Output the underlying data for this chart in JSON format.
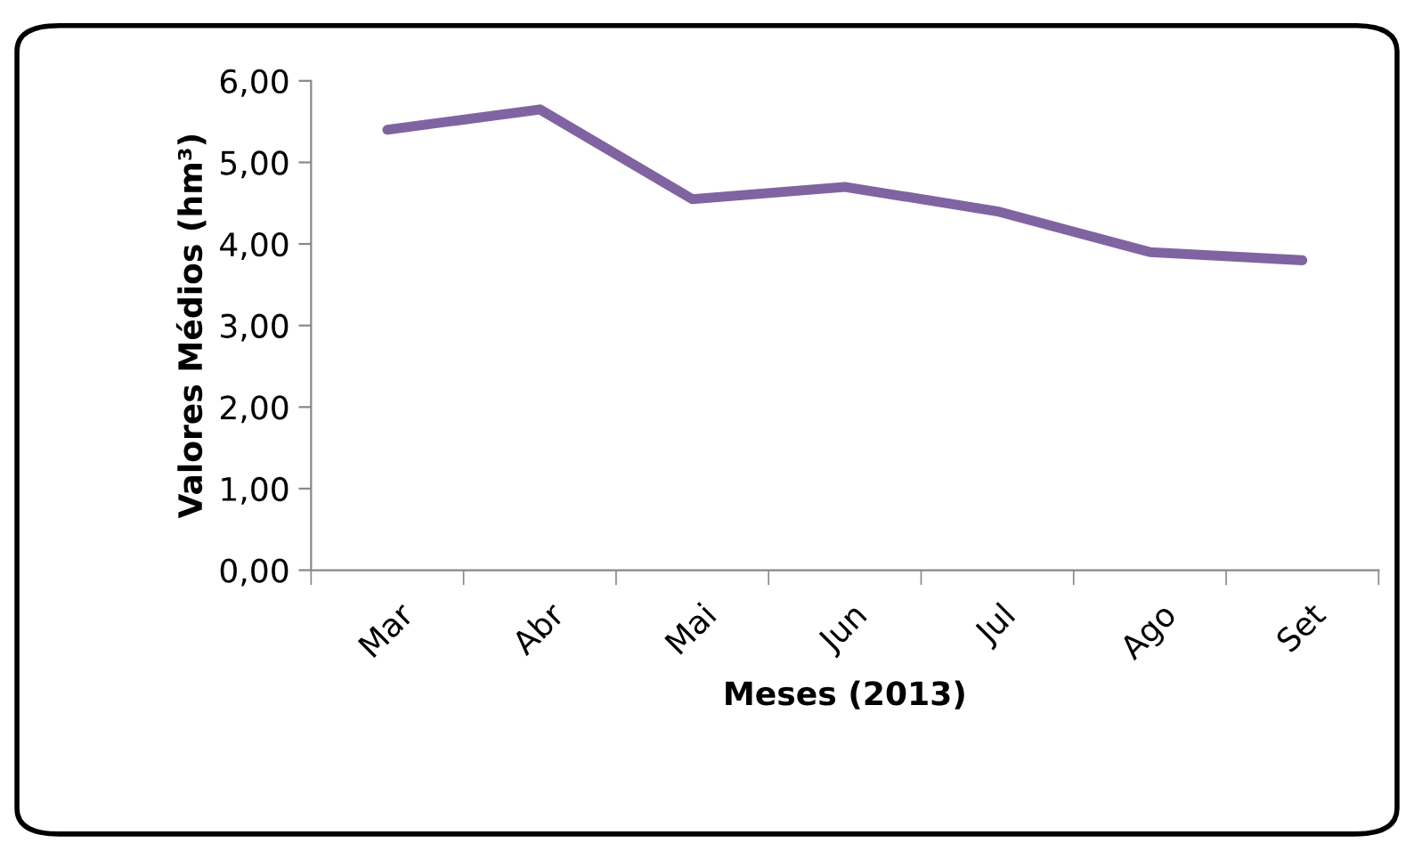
{
  "chart_data": {
    "type": "line",
    "xlabel": "Meses (2013)",
    "ylabel": "Valores Médios (hm³)",
    "categories": [
      "Mar",
      "Abr",
      "Mai",
      "Jun",
      "Jul",
      "Ago",
      "Set"
    ],
    "series": [
      {
        "color": "#8064a2",
        "values": [
          5.4,
          5.65,
          4.55,
          4.7,
          4.4,
          3.9,
          3.8
        ]
      }
    ],
    "ylim": [
      0,
      6
    ],
    "yticks": [
      {
        "value": 0,
        "label": "0,00"
      },
      {
        "value": 1,
        "label": "1,00"
      },
      {
        "value": 2,
        "label": "2,00"
      },
      {
        "value": 3,
        "label": "3,00"
      },
      {
        "value": 4,
        "label": "4,00"
      },
      {
        "value": 5,
        "label": "5,00"
      },
      {
        "value": 6,
        "label": "6,00"
      }
    ],
    "grid": false,
    "marker": "none",
    "line_style": "solid"
  }
}
